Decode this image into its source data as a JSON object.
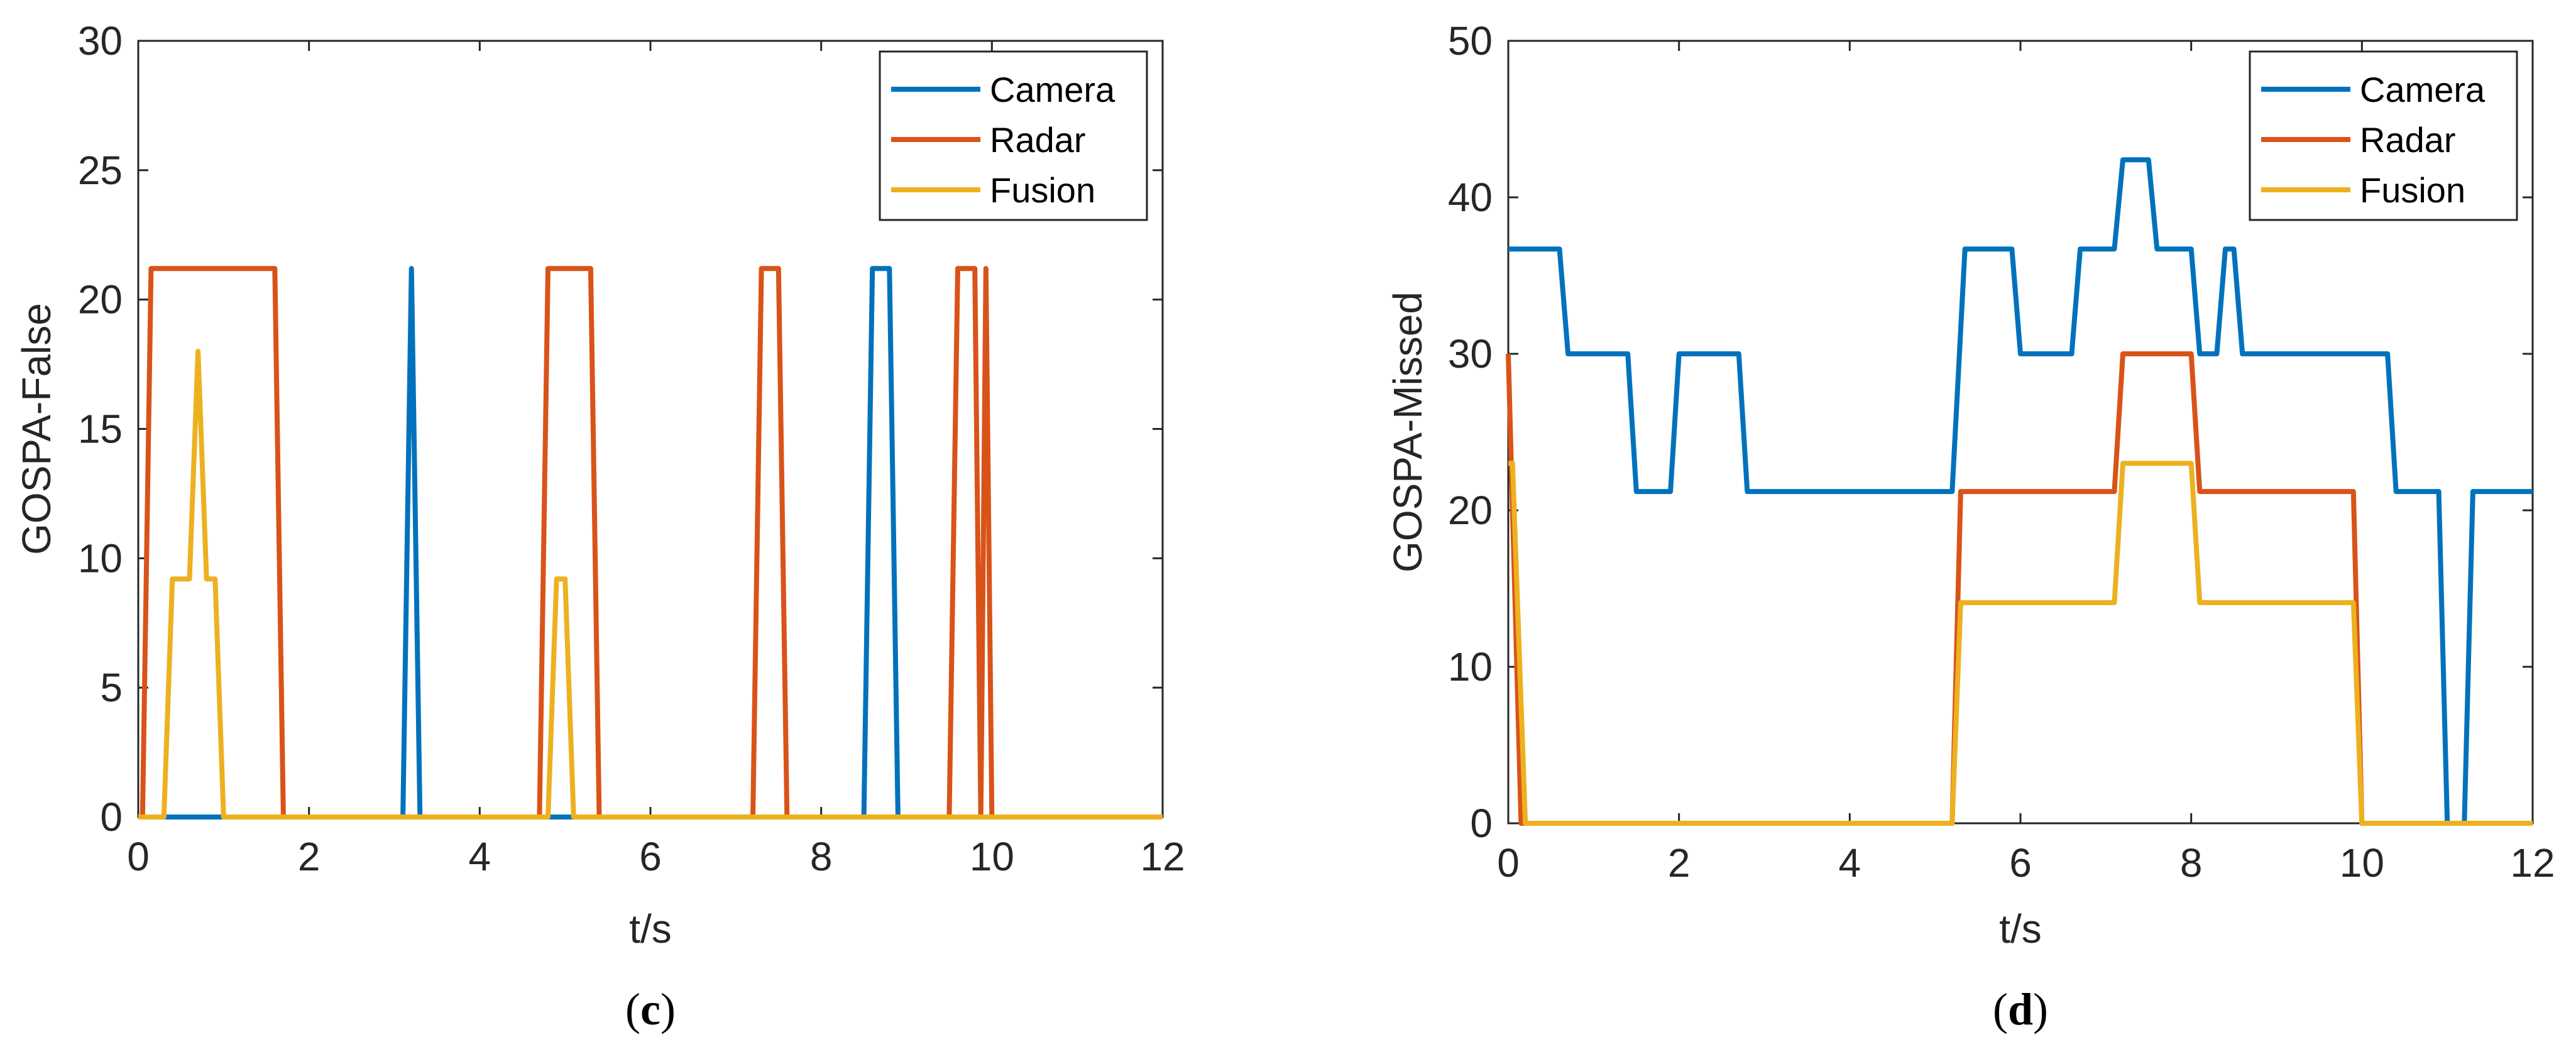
{
  "chart_data": [
    {
      "type": "line",
      "panel_label": "c",
      "title": "",
      "xlabel": "t/s",
      "ylabel": "GOSPA-False",
      "xlim": [
        0,
        12
      ],
      "ylim": [
        0,
        30
      ],
      "xticks": [
        0,
        2,
        4,
        6,
        8,
        10,
        12
      ],
      "yticks": [
        0,
        5,
        10,
        15,
        20,
        25,
        30
      ],
      "grid": false,
      "legend": "top-right",
      "series": [
        {
          "name": "Camera",
          "color": "#0072BD",
          "x": [
            0,
            3.1,
            3.2,
            3.3,
            8.5,
            8.6,
            8.8,
            8.9,
            12
          ],
          "y": [
            0,
            0,
            21.2,
            0,
            0,
            21.2,
            21.2,
            0,
            0
          ]
        },
        {
          "name": "Radar",
          "color": "#D95319",
          "x": [
            0,
            0.05,
            0.15,
            1.6,
            1.7,
            4.7,
            4.8,
            5.3,
            5.4,
            7.2,
            7.3,
            7.5,
            7.6,
            9.5,
            9.6,
            9.8,
            9.87,
            9.93,
            10.0,
            10.1,
            12
          ],
          "y": [
            0,
            0,
            21.2,
            21.2,
            0,
            0,
            21.2,
            21.2,
            0,
            0,
            21.2,
            21.2,
            0,
            0,
            21.2,
            21.2,
            0,
            21.2,
            0,
            0,
            0
          ]
        },
        {
          "name": "Fusion",
          "color": "#EDB120",
          "x": [
            0,
            0.3,
            0.4,
            0.6,
            0.7,
            0.8,
            0.9,
            1.0,
            4.8,
            4.9,
            5.0,
            5.1,
            8.9,
            12
          ],
          "y": [
            0,
            0,
            9.2,
            9.2,
            18,
            9.2,
            9.2,
            0,
            0,
            9.2,
            9.2,
            0,
            0,
            0
          ]
        }
      ]
    },
    {
      "type": "line",
      "panel_label": "d",
      "title": "",
      "xlabel": "t/s",
      "ylabel": "GOSPA-Missed",
      "xlim": [
        0,
        12
      ],
      "ylim": [
        0,
        50
      ],
      "xticks": [
        0,
        2,
        4,
        6,
        8,
        10,
        12
      ],
      "yticks": [
        0,
        10,
        20,
        30,
        40,
        50
      ],
      "grid": false,
      "legend": "top-right",
      "series": [
        {
          "name": "Camera",
          "color": "#0072BD",
          "x": [
            0,
            0.6,
            0.7,
            1.4,
            1.5,
            1.9,
            2.0,
            2.7,
            2.8,
            5.2,
            5.35,
            5.9,
            6.0,
            6.6,
            6.7,
            7.1,
            7.2,
            7.5,
            7.6,
            8.0,
            8.1,
            8.3,
            8.4,
            8.5,
            8.6,
            10.3,
            10.4,
            10.9,
            11.0,
            11.2,
            11.3,
            12
          ],
          "y": [
            36.7,
            36.7,
            30,
            30,
            21.2,
            21.2,
            30,
            30,
            21.2,
            21.2,
            36.7,
            36.7,
            30,
            30,
            36.7,
            36.7,
            42.4,
            42.4,
            36.7,
            36.7,
            30,
            30,
            36.7,
            36.7,
            30,
            30,
            21.2,
            21.2,
            0,
            0,
            21.2,
            21.2
          ]
        },
        {
          "name": "Radar",
          "color": "#D95319",
          "x": [
            0,
            0.15,
            5.2,
            5.3,
            7.1,
            7.2,
            8.0,
            8.1,
            9.9,
            10.0,
            12
          ],
          "y": [
            30,
            0,
            0,
            21.2,
            21.2,
            30,
            30,
            21.2,
            21.2,
            0,
            0
          ]
        },
        {
          "name": "Fusion",
          "color": "#EDB120",
          "x": [
            0,
            0.05,
            0.2,
            5.2,
            5.3,
            7.1,
            7.2,
            8.0,
            8.1,
            9.9,
            10.0,
            12
          ],
          "y": [
            23,
            23,
            0,
            0,
            14.1,
            14.1,
            23,
            23,
            14.1,
            14.1,
            0,
            0
          ]
        }
      ]
    }
  ]
}
